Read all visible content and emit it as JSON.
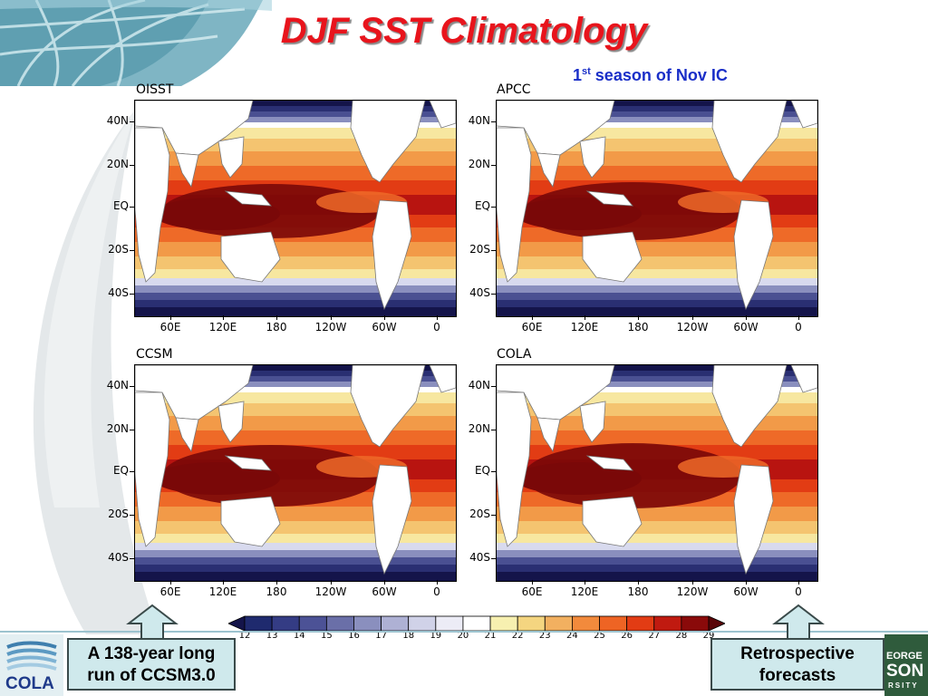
{
  "title": "DJF SST Climatology",
  "subtitle": {
    "prefix": "1",
    "sup": "st",
    "rest": " season of Nov IC"
  },
  "panels": [
    {
      "label": "OISST"
    },
    {
      "label": "APCC"
    },
    {
      "label": "CCSM"
    },
    {
      "label": "COLA"
    }
  ],
  "lat_ticks": [
    "40N",
    "20N",
    "EQ",
    "20S",
    "40S"
  ],
  "lon_ticks": [
    "60E",
    "120E",
    "180",
    "120W",
    "60W",
    "0"
  ],
  "colorbar": {
    "levels": [
      "12",
      "13",
      "14",
      "15",
      "16",
      "17",
      "18",
      "19",
      "20",
      "21",
      "22",
      "23",
      "24",
      "25",
      "26",
      "27",
      "28",
      "29"
    ],
    "colors": [
      "#14144a",
      "#1f2a6e",
      "#343c84",
      "#4c5296",
      "#6a6fa8",
      "#8a8fbe",
      "#aeb1d4",
      "#d0d2e8",
      "#ececf6",
      "#ffffff",
      "#f7f0b0",
      "#f4d580",
      "#f2b060",
      "#f28a3c",
      "#ee6424",
      "#e23c14",
      "#c01a10",
      "#8a0a0a",
      "#5a0508"
    ]
  },
  "callouts": {
    "left": {
      "line1": "A 138-year long",
      "line2": "run of CCSM3.0"
    },
    "right": {
      "line1": "Retrospective",
      "line2": "forecasts"
    }
  },
  "logos": {
    "left_text": "COLA",
    "right_line1": "EORGE",
    "right_line2": "SON",
    "right_line3": "RSITY"
  }
}
